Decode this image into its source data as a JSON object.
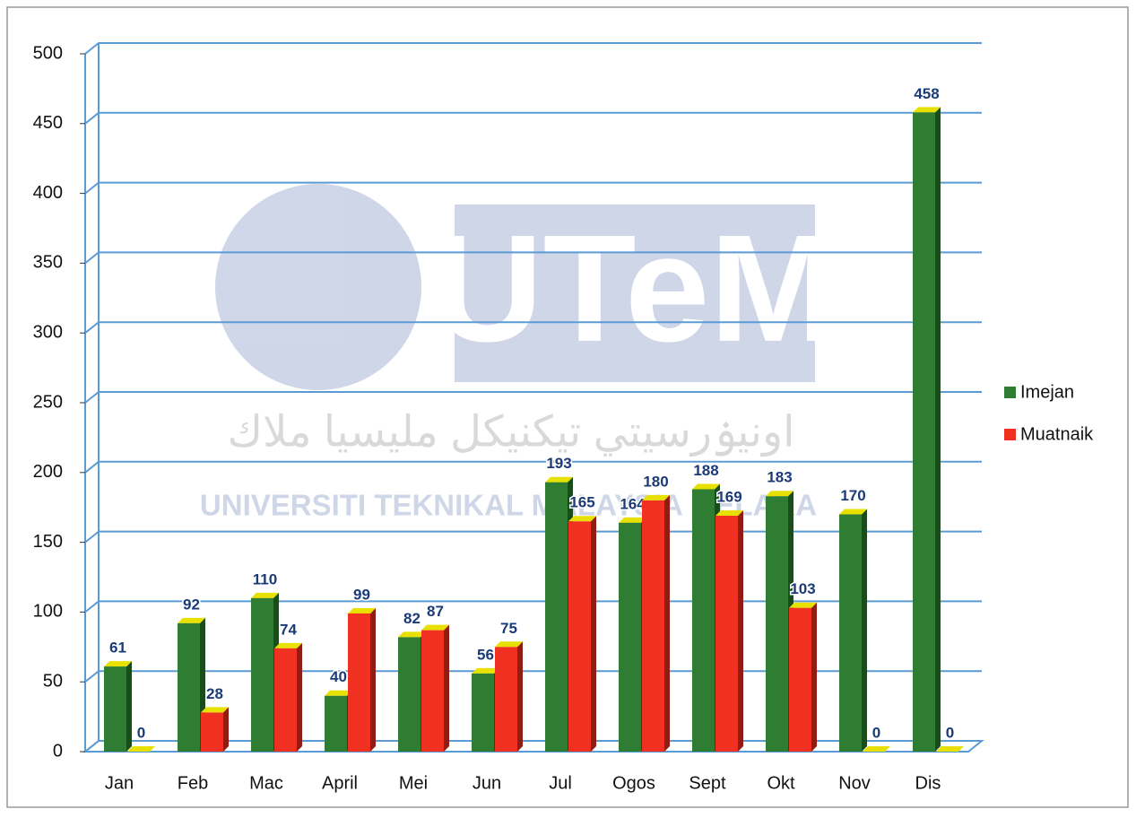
{
  "chart_data": {
    "type": "bar",
    "categories": [
      "Jan",
      "Feb",
      "Mac",
      "April",
      "Mei",
      "Jun",
      "Jul",
      "Ogos",
      "Sept",
      "Okt",
      "Nov",
      "Dis"
    ],
    "series": [
      {
        "name": "Imejan",
        "color": "#2e7d32",
        "values": [
          61,
          92,
          110,
          40,
          82,
          56,
          193,
          164,
          188,
          183,
          170,
          458
        ]
      },
      {
        "name": "Muatnaik",
        "color": "#f03020",
        "values": [
          0,
          28,
          74,
          99,
          87,
          75,
          165,
          180,
          169,
          103,
          0,
          0
        ]
      }
    ],
    "ylim": [
      0,
      500
    ],
    "yticks": [
      0,
      50,
      100,
      150,
      200,
      250,
      300,
      350,
      400,
      450,
      500
    ],
    "grid": true,
    "legend": "right"
  },
  "watermark": {
    "logo": "UTeM",
    "name": "UNIVERSITI TEKNIKAL MALAYSIA MELAKA",
    "arabic": "اونيۏرسيتي تيكنيكل مليسيا ملاك"
  }
}
